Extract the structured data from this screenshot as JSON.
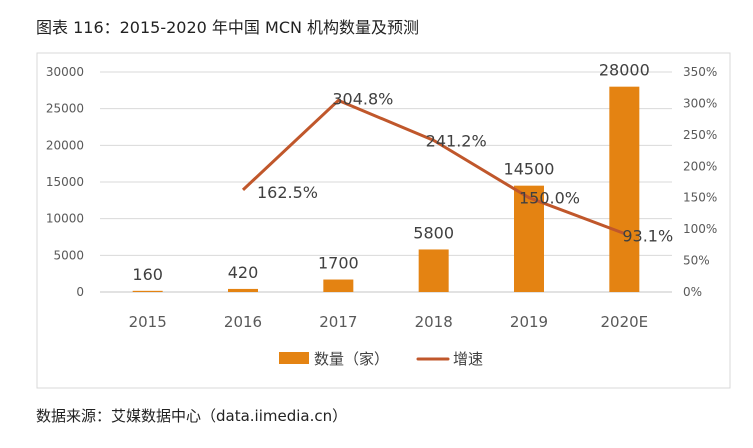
{
  "title": "图表 116：2015-2020 年中国 MCN 机构数量及预测",
  "source": "数据来源：艾媒数据中心（data.iimedia.cn）",
  "chart_data": {
    "type": "bar+line",
    "categories": [
      "2015",
      "2016",
      "2017",
      "2018",
      "2019",
      "2020E"
    ],
    "series": [
      {
        "name": "数量（家）",
        "type": "bar",
        "axis": "left",
        "color": "#E48312",
        "values": [
          160,
          420,
          1700,
          5800,
          14500,
          28000
        ],
        "labels": [
          "160",
          "420",
          "1700",
          "5800",
          "14500",
          "28000"
        ]
      },
      {
        "name": "增速",
        "type": "line",
        "axis": "right",
        "color": "#C0572B",
        "values": [
          null,
          162.5,
          304.8,
          241.2,
          150.0,
          93.1
        ],
        "labels": [
          "",
          "162.5%",
          "304.8%",
          "241.2%",
          "150.0%",
          "93.1%"
        ]
      }
    ],
    "left_axis": {
      "ylim": [
        0,
        30000
      ],
      "ticks": [
        "0",
        "5000",
        "10000",
        "15000",
        "20000",
        "25000",
        "30000"
      ]
    },
    "right_axis": {
      "ylim": [
        0,
        350
      ],
      "ticks": [
        "0%",
        "50%",
        "100%",
        "150%",
        "200%",
        "250%",
        "300%",
        "350%"
      ]
    },
    "grid": true,
    "legend": "bottom"
  }
}
